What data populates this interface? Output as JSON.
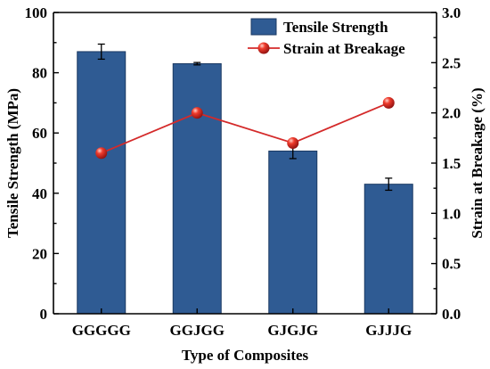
{
  "chart_data": {
    "type": "bar",
    "categories": [
      "GGGGG",
      "GGJGG",
      "GJGJG",
      "GJJJG"
    ],
    "xlabel": "Type of Composites",
    "y_left": {
      "label": "Tensile Strength (MPa)",
      "lim": [
        0,
        100
      ],
      "ticks": [
        "0",
        "20",
        "40",
        "60",
        "80",
        "100"
      ]
    },
    "y_right": {
      "label": "Strain at Breakage (%)",
      "lim": [
        0,
        3.0
      ],
      "ticks": [
        "0.0",
        "0.5",
        "1.0",
        "1.5",
        "2.0",
        "2.5",
        "3.0"
      ]
    },
    "series": [
      {
        "name": "Tensile Strength",
        "kind": "bar",
        "axis": "left",
        "color": "#2f5b93",
        "values": [
          87,
          83,
          54,
          43
        ],
        "errors": [
          2.5,
          0.4,
          2.5,
          2.0
        ]
      },
      {
        "name": "Strain at Breakage",
        "kind": "line",
        "axis": "right",
        "color": "#d42a2a",
        "values": [
          1.6,
          2.0,
          1.7,
          2.1
        ]
      }
    ],
    "legend": {
      "placement": "top-right"
    },
    "grid": false
  }
}
